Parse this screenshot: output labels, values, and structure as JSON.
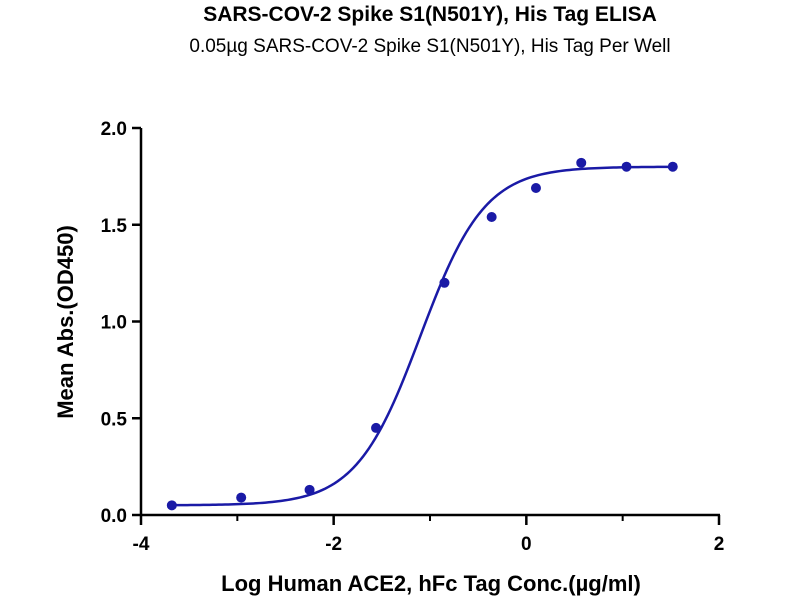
{
  "chart_data": {
    "type": "scatter",
    "title": "SARS-COV-2 Spike S1(N501Y), His Tag ELISA",
    "subtitle": "0.05µg SARS-COV-2 Spike S1(N501Y), His Tag Per Well",
    "xlabel": "Log Human ACE2, hFc Tag Conc.(µg/ml)",
    "ylabel": "Mean Abs.(OD450)",
    "xlim": [
      -4,
      2
    ],
    "ylim": [
      0,
      2.0
    ],
    "x_ticks": [
      "-4",
      "-2",
      "0",
      "2"
    ],
    "y_ticks": [
      "0.0",
      "0.5",
      "1.0",
      "1.5",
      "2.0"
    ],
    "grid": false,
    "colors": {
      "series": "#1a1aa6"
    },
    "series": [
      {
        "x": [
          -3.68,
          -2.96,
          -2.25,
          -1.56,
          -0.85,
          -0.36,
          0.1,
          0.57,
          1.04,
          1.52
        ],
        "y": [
          0.05,
          0.09,
          0.13,
          0.45,
          1.2,
          1.54,
          1.69,
          1.82,
          1.8,
          1.8
        ]
      }
    ],
    "fit": {
      "model": "4PL",
      "bottom": 0.05,
      "top": 1.8,
      "log_ec50": -1.1,
      "hill": 1.3
    }
  }
}
